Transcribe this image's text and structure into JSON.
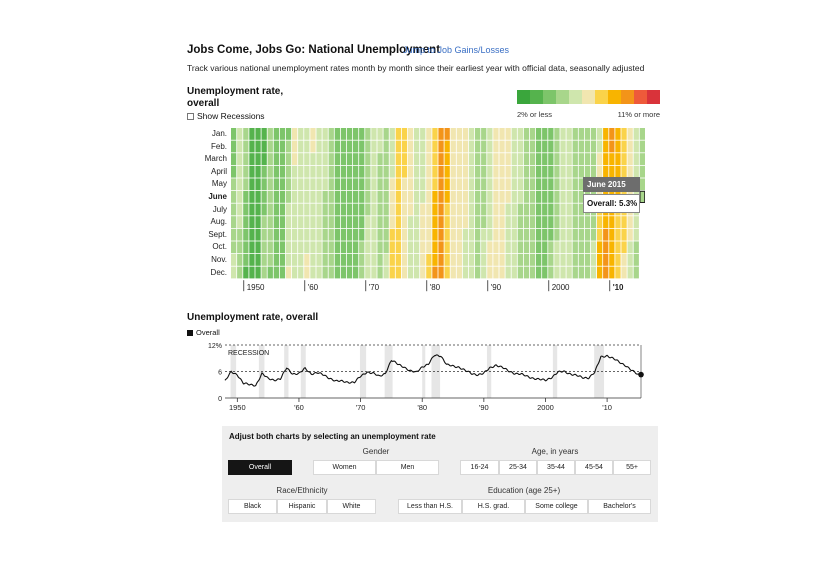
{
  "header": {
    "title": "Jobs Come, Jobs Go: National Unemployment",
    "jump_link": "Jump to Job Gains/Losses",
    "subtitle": "Track various national unemployment rates month by month since their earliest year with official data, seasonally adjusted"
  },
  "heatmap": {
    "title_line1": "Unemployment rate,",
    "title_line2": "overall",
    "show_recessions_label": "Show Recessions",
    "legend_low": "2% or less",
    "legend_high": "11% or more",
    "legend_colors": [
      "#3aa63c",
      "#55b34d",
      "#7dc56a",
      "#a8d68b",
      "#cfe6ad",
      "#f1e6b0",
      "#fad34a",
      "#f8b400",
      "#f39419",
      "#ee5a3a",
      "#d9333a"
    ],
    "months": [
      "Jan.",
      "Feb.",
      "March",
      "April",
      "May",
      "June",
      "July",
      "Aug.",
      "Sept.",
      "Oct.",
      "Nov.",
      "Dec."
    ],
    "highlight_month": "June",
    "x_ticks": [
      "1950",
      "'60",
      "'70",
      "'80",
      "'90",
      "2000",
      "'10"
    ],
    "tooltip_title": "June 2015",
    "tooltip_value": "Overall: 5.3%"
  },
  "line_chart": {
    "title": "Unemployment rate, overall",
    "legend_label": "Overall",
    "recession_label": "RECESSION",
    "y_ticks": [
      "12%",
      "6",
      "0"
    ],
    "x_ticks": [
      "1950",
      "'60",
      "'70",
      "'80",
      "'90",
      "2000",
      "'10"
    ]
  },
  "controls": {
    "title": "Adjust both charts by selecting an unemployment rate",
    "gender_label": "Gender",
    "age_label": "Age, in years",
    "race_label": "Race/Ethnicity",
    "education_label": "Education (age 25+)",
    "overall": "Overall",
    "gender": [
      "Women",
      "Men"
    ],
    "age": [
      "16-24",
      "25-34",
      "35-44",
      "45-54",
      "55+"
    ],
    "race": [
      "Black",
      "Hispanic",
      "White"
    ],
    "education": [
      "Less than H.S.",
      "H.S. grad.",
      "Some college",
      "Bachelor's"
    ]
  },
  "chart_data": [
    {
      "type": "heatmap",
      "title": "Unemployment rate, overall",
      "x_label": "",
      "y_label": "",
      "x_ticks": [
        "1950",
        "'60",
        "'70",
        "'80",
        "'90",
        "2000",
        "'10"
      ],
      "y_categories": [
        "Jan.",
        "Feb.",
        "March",
        "April",
        "May",
        "June",
        "July",
        "Aug.",
        "Sept.",
        "Oct.",
        "Nov.",
        "Dec."
      ],
      "x_range": [
        1948,
        2015
      ],
      "color_scale": "2% or less (green) to 11% or more (red)",
      "annual_rate_keypoints": [
        [
          1948,
          3.8
        ],
        [
          1949,
          5.9
        ],
        [
          1950,
          5.3
        ],
        [
          1951,
          3.3
        ],
        [
          1952,
          3.0
        ],
        [
          1953,
          2.9
        ],
        [
          1954,
          5.5
        ],
        [
          1955,
          4.4
        ],
        [
          1956,
          4.1
        ],
        [
          1957,
          4.3
        ],
        [
          1958,
          6.8
        ],
        [
          1959,
          5.5
        ],
        [
          1960,
          5.5
        ],
        [
          1961,
          6.7
        ],
        [
          1962,
          5.5
        ],
        [
          1963,
          5.7
        ],
        [
          1964,
          5.2
        ],
        [
          1965,
          4.5
        ],
        [
          1966,
          3.8
        ],
        [
          1967,
          3.8
        ],
        [
          1968,
          3.6
        ],
        [
          1969,
          3.5
        ],
        [
          1970,
          4.9
        ],
        [
          1971,
          5.9
        ],
        [
          1972,
          5.6
        ],
        [
          1973,
          4.9
        ],
        [
          1974,
          5.6
        ],
        [
          1975,
          8.5
        ],
        [
          1976,
          7.7
        ],
        [
          1977,
          7.1
        ],
        [
          1978,
          6.1
        ],
        [
          1979,
          5.8
        ],
        [
          1980,
          7.1
        ],
        [
          1981,
          7.6
        ],
        [
          1982,
          9.7
        ],
        [
          1983,
          9.6
        ],
        [
          1984,
          7.5
        ],
        [
          1985,
          7.2
        ],
        [
          1986,
          7.0
        ],
        [
          1987,
          6.2
        ],
        [
          1988,
          5.5
        ],
        [
          1989,
          5.3
        ],
        [
          1990,
          5.6
        ],
        [
          1991,
          6.8
        ],
        [
          1992,
          7.5
        ],
        [
          1993,
          6.9
        ],
        [
          1994,
          6.1
        ],
        [
          1995,
          5.6
        ],
        [
          1996,
          5.4
        ],
        [
          1997,
          4.9
        ],
        [
          1998,
          4.5
        ],
        [
          1999,
          4.2
        ],
        [
          2000,
          4.0
        ],
        [
          2001,
          4.7
        ],
        [
          2002,
          5.8
        ],
        [
          2003,
          6.0
        ],
        [
          2004,
          5.5
        ],
        [
          2005,
          5.1
        ],
        [
          2006,
          4.6
        ],
        [
          2007,
          4.6
        ],
        [
          2008,
          5.8
        ],
        [
          2009,
          9.3
        ],
        [
          2010,
          9.6
        ],
        [
          2011,
          8.9
        ],
        [
          2012,
          8.1
        ],
        [
          2013,
          7.4
        ],
        [
          2014,
          6.2
        ],
        [
          2015,
          5.3
        ]
      ],
      "highlighted_cell": {
        "month": "June",
        "year": 2015,
        "value": 5.3
      }
    },
    {
      "type": "line",
      "title": "Unemployment rate, overall",
      "series": [
        {
          "name": "Overall"
        }
      ],
      "x_range": [
        1948,
        2015
      ],
      "y_range": [
        0,
        12
      ],
      "y_ticks": [
        0,
        6,
        12
      ],
      "x_ticks": [
        "1950",
        "'60",
        "'70",
        "'80",
        "'90",
        "2000",
        "'10"
      ],
      "reference_lines": [
        6,
        12
      ],
      "recessions": [
        [
          1948.9,
          1949.8
        ],
        [
          1953.5,
          1954.4
        ],
        [
          1957.6,
          1958.3
        ],
        [
          1960.3,
          1961.1
        ],
        [
          1969.9,
          1970.9
        ],
        [
          1973.9,
          1975.2
        ],
        [
          1980.0,
          1980.5
        ],
        [
          1981.5,
          1982.9
        ],
        [
          1990.5,
          1991.2
        ],
        [
          2001.2,
          2001.9
        ],
        [
          2007.9,
          2009.5
        ]
      ],
      "last_point": {
        "year": 2015.5,
        "value": 5.3
      }
    }
  ]
}
